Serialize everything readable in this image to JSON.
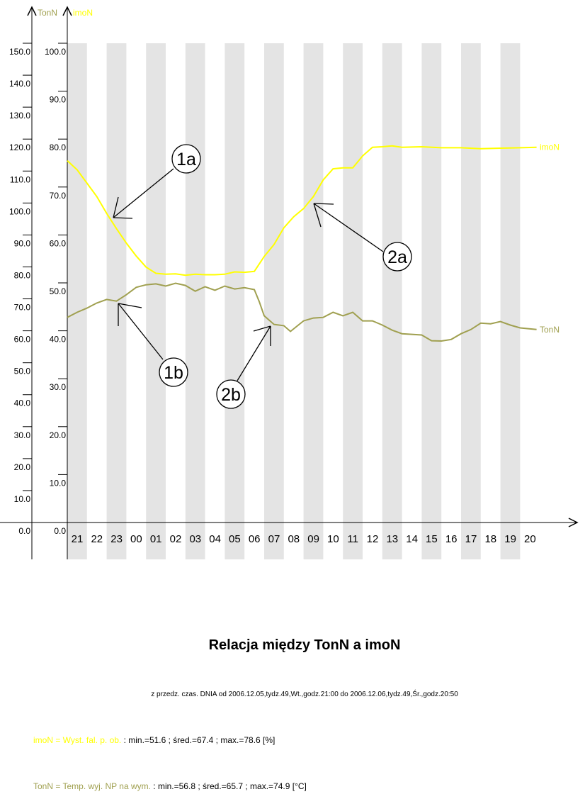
{
  "chart_data": {
    "type": "line",
    "title": "Relacja między TonN a imoN",
    "subtitle": "z przedz. czas. DNIA od 2006.12.05,tydz.49,Wt.,godz.21:00 do 2006.12.06,tydz.49,Śr.,godz.20:50",
    "x_ticks": [
      "21",
      "22",
      "23",
      "00",
      "01",
      "02",
      "03",
      "04",
      "05",
      "06",
      "07",
      "08",
      "09",
      "10",
      "11",
      "12",
      "13",
      "14",
      "15",
      "16",
      "17",
      "18",
      "19",
      "20"
    ],
    "grid": "alternating grey hour bands",
    "axes": [
      {
        "name": "TonN",
        "range": [
          0,
          150
        ],
        "ticks": [
          "0.0",
          "10.0",
          "20.0",
          "30.0",
          "40.0",
          "50.0",
          "60.0",
          "70.0",
          "80.0",
          "90.0",
          "100.0",
          "110.0",
          "120.0",
          "130.0",
          "140.0",
          "150.0"
        ],
        "color": "#a0a050"
      },
      {
        "name": "imoN",
        "range": [
          0,
          100
        ],
        "ticks": [
          "0.0",
          "10.0",
          "20.0",
          "30.0",
          "40.0",
          "50.0",
          "60.0",
          "70.0",
          "80.0",
          "90.0",
          "100.0"
        ],
        "color": "#ffff00"
      }
    ],
    "series": [
      {
        "name": "imoN",
        "axis": "imoN",
        "color": "#ffff00",
        "x": [
          "21:00",
          "21:30",
          "22:00",
          "22:30",
          "23:00",
          "23:30",
          "00:00",
          "00:30",
          "01:00",
          "01:30",
          "02:00",
          "02:30",
          "03:00",
          "03:30",
          "04:00",
          "04:30",
          "05:00",
          "05:30",
          "06:00",
          "06:30",
          "07:00",
          "07:30",
          "08:00",
          "08:30",
          "09:00",
          "09:30",
          "10:00",
          "10:30",
          "11:00",
          "11:30",
          "12:00",
          "12:30",
          "13:00",
          "13:30",
          "14:00",
          "15:00",
          "16:00",
          "17:00",
          "18:00",
          "19:00",
          "20:00",
          "20:50"
        ],
        "y": [
          75.5,
          73.6,
          70.8,
          68,
          64.5,
          61.3,
          58.3,
          55.6,
          53.3,
          52,
          51.8,
          51.9,
          51.6,
          51.8,
          51.7,
          51.7,
          51.8,
          52.3,
          52.2,
          52.4,
          55.5,
          58,
          61.5,
          63.8,
          65.5,
          68,
          71.5,
          73.8,
          74,
          74,
          76.5,
          78.3,
          78.4,
          78.6,
          78.3,
          78.4,
          78.2,
          78.2,
          78,
          78.1,
          78.2,
          78.3
        ]
      },
      {
        "name": "TonN",
        "axis": "TonN",
        "color": "#a0a050",
        "x": [
          "21:00",
          "21:30",
          "22:00",
          "22:30",
          "23:00",
          "23:30",
          "00:00",
          "00:30",
          "01:00",
          "01:30",
          "02:00",
          "02:30",
          "03:00",
          "03:30",
          "04:00",
          "04:30",
          "05:00",
          "05:30",
          "06:00",
          "06:30",
          "06:45",
          "07:00",
          "07:30",
          "08:00",
          "08:20",
          "09:00",
          "09:30",
          "10:00",
          "10:30",
          "11:00",
          "11:30",
          "12:00",
          "12:30",
          "13:00",
          "13:30",
          "14:00",
          "14:30",
          "15:00",
          "15:30",
          "16:00",
          "16:30",
          "17:00",
          "17:30",
          "18:00",
          "18:30",
          "19:00",
          "19:30",
          "20:00",
          "20:50"
        ],
        "y": [
          64.2,
          65.8,
          67.1,
          68.7,
          69.8,
          69.3,
          71.3,
          73.6,
          74.4,
          74.7,
          74,
          74.9,
          74.2,
          72.4,
          73.8,
          72.7,
          74,
          73.1,
          73.5,
          72.9,
          69.1,
          64.7,
          62,
          61.6,
          59.8,
          63.1,
          64,
          64.2,
          65.8,
          64.7,
          65.8,
          63.1,
          63.1,
          61.8,
          60.2,
          59.1,
          58.9,
          58.7,
          56.9,
          56.8,
          57.3,
          59.1,
          60.4,
          62.4,
          62.2,
          62.9,
          61.8,
          60.9,
          60.4
        ]
      }
    ],
    "annotations": [
      {
        "label": "1a",
        "target": "imoN"
      },
      {
        "label": "2a",
        "target": "imoN"
      },
      {
        "label": "1b",
        "target": "TonN"
      },
      {
        "label": "2b",
        "target": "TonN"
      }
    ]
  },
  "legend": {
    "imoN": {
      "name": "imoN = Wyst. fal. p. ob.",
      "stats": " : min.=51.6 ; śred.=67.4 ; max.=78.6 [%]"
    },
    "TonN": {
      "name": "TonN = Temp. wyj. NP na wym.",
      "stats": " : min.=56.8 ; śred.=65.7 ; max.=74.9 [°C]"
    }
  }
}
